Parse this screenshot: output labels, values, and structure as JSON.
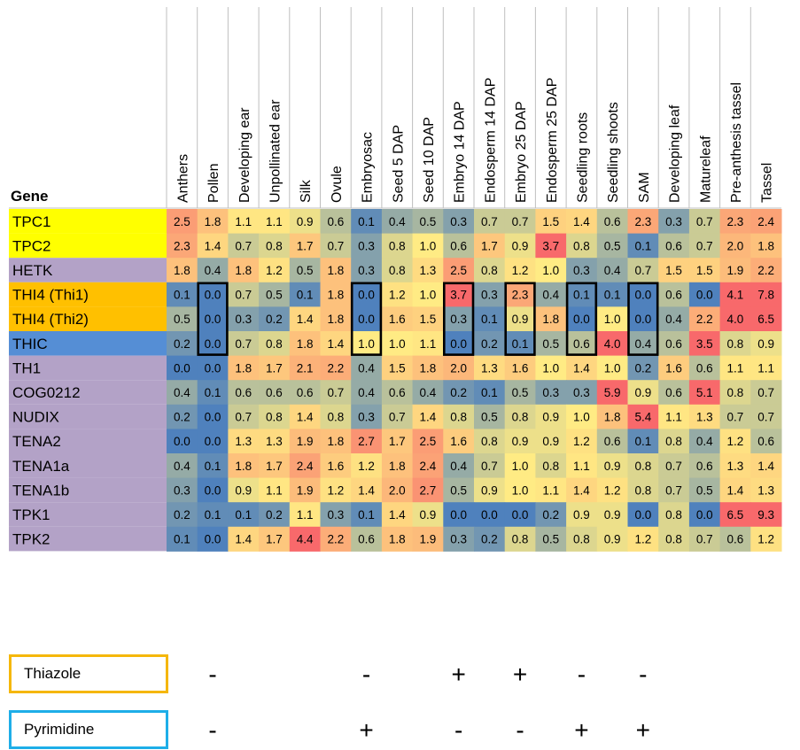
{
  "chart_data": {
    "type": "heatmap",
    "row_header": "Gene",
    "columns": [
      "Anthers",
      "Pollen",
      "Developing ear",
      "Unpollinated ear",
      "Silk",
      "Ovule",
      "Embryosac",
      "Seed 5 DAP",
      "Seed 10 DAP",
      "Embryo 14 DAP",
      "Endosperm 14 DAP",
      "Embryo 25 DAP",
      "Endosperm 25 DAP",
      "Seedling roots",
      "Seedling shoots",
      "SAM",
      "Developing leaf",
      "Matureleaf",
      "Pre-anthesis tassel",
      "Tassel"
    ],
    "rows": [
      {
        "gene": "TPC1",
        "group_color": "#ffff00",
        "values": [
          2.5,
          1.8,
          1.1,
          1.1,
          0.9,
          0.6,
          0.1,
          0.4,
          0.5,
          0.3,
          0.7,
          0.7,
          1.5,
          1.4,
          0.6,
          2.3,
          0.3,
          0.7,
          2.3,
          2.4
        ]
      },
      {
        "gene": "TPC2",
        "group_color": "#ffff00",
        "values": [
          2.3,
          1.4,
          0.7,
          0.8,
          1.7,
          0.7,
          0.3,
          0.8,
          1.0,
          0.6,
          1.7,
          0.9,
          3.7,
          0.8,
          0.5,
          0.1,
          0.6,
          0.7,
          2.0,
          1.8
        ]
      },
      {
        "gene": "HETK",
        "group_color": "#b3a2c7",
        "values": [
          1.8,
          0.4,
          1.8,
          1.2,
          0.5,
          1.8,
          0.3,
          0.8,
          1.3,
          2.5,
          0.8,
          1.2,
          1.0,
          0.3,
          0.4,
          0.7,
          1.5,
          1.5,
          1.9,
          2.2
        ]
      },
      {
        "gene": "THI4 (Thi1)",
        "group_color": "#ffc000",
        "values": [
          0.1,
          0.0,
          0.7,
          0.5,
          0.1,
          1.8,
          0.0,
          1.2,
          1.0,
          3.7,
          0.3,
          2.3,
          0.4,
          0.1,
          0.1,
          0.0,
          0.6,
          0.0,
          4.1,
          7.8
        ]
      },
      {
        "gene": "THI4 (Thi2)",
        "group_color": "#ffc000",
        "values": [
          0.5,
          0.0,
          0.3,
          0.2,
          1.4,
          1.8,
          0.0,
          1.6,
          1.5,
          0.3,
          0.1,
          0.9,
          1.8,
          0.0,
          1.0,
          0.0,
          0.4,
          2.2,
          4.0,
          6.5
        ]
      },
      {
        "gene": "THIC",
        "group_color": "#558ed5",
        "values": [
          0.2,
          0.0,
          0.7,
          0.8,
          1.8,
          1.4,
          1.0,
          1.0,
          1.1,
          0.0,
          0.2,
          0.1,
          0.5,
          0.6,
          4.0,
          0.4,
          0.6,
          3.5,
          0.8,
          0.9
        ]
      },
      {
        "gene": "TH1",
        "group_color": "#b3a2c7",
        "values": [
          0.0,
          0.0,
          1.8,
          1.7,
          2.1,
          2.2,
          0.4,
          1.5,
          1.8,
          2.0,
          1.3,
          1.6,
          1.0,
          1.4,
          1.0,
          0.2,
          1.6,
          0.6,
          1.1,
          1.1
        ]
      },
      {
        "gene": "COG0212",
        "group_color": "#b3a2c7",
        "values": [
          0.4,
          0.1,
          0.6,
          0.6,
          0.6,
          0.7,
          0.4,
          0.6,
          0.4,
          0.2,
          0.1,
          0.5,
          0.3,
          0.3,
          5.9,
          0.9,
          0.6,
          5.1,
          0.8,
          0.7
        ]
      },
      {
        "gene": "NUDIX",
        "group_color": "#b3a2c7",
        "values": [
          0.2,
          0.0,
          0.7,
          0.8,
          1.4,
          0.8,
          0.3,
          0.7,
          1.4,
          0.8,
          0.5,
          0.8,
          0.9,
          1.0,
          1.8,
          5.4,
          1.1,
          1.3,
          0.7,
          0.7
        ]
      },
      {
        "gene": "TENA2",
        "group_color": "#b3a2c7",
        "values": [
          0.0,
          0.0,
          1.3,
          1.3,
          1.9,
          1.8,
          2.7,
          1.7,
          2.5,
          1.6,
          0.8,
          0.9,
          0.9,
          1.2,
          0.6,
          0.1,
          0.8,
          0.4,
          1.2,
          0.6
        ]
      },
      {
        "gene": "TENA1a",
        "group_color": "#b3a2c7",
        "values": [
          0.4,
          0.1,
          1.8,
          1.7,
          2.4,
          1.6,
          1.2,
          1.8,
          2.4,
          0.4,
          0.7,
          1.0,
          0.8,
          1.1,
          0.9,
          0.8,
          0.7,
          0.6,
          1.3,
          1.4
        ]
      },
      {
        "gene": "TENA1b",
        "group_color": "#b3a2c7",
        "values": [
          0.3,
          0.0,
          0.9,
          1.1,
          1.9,
          1.2,
          1.4,
          2.0,
          2.7,
          0.5,
          0.9,
          1.0,
          1.1,
          1.4,
          1.2,
          0.8,
          0.7,
          0.5,
          1.4,
          1.3
        ]
      },
      {
        "gene": "TPK1",
        "group_color": "#b3a2c7",
        "values": [
          0.2,
          0.1,
          0.1,
          0.2,
          1.1,
          0.3,
          0.1,
          1.4,
          0.9,
          0.0,
          0.0,
          0.0,
          0.2,
          0.9,
          0.9,
          0.0,
          0.8,
          0.0,
          6.5,
          9.3
        ]
      },
      {
        "gene": "TPK2",
        "group_color": "#b3a2c7",
        "values": [
          0.1,
          0.0,
          1.4,
          1.7,
          4.4,
          2.2,
          0.6,
          1.8,
          1.9,
          0.3,
          0.2,
          0.8,
          0.5,
          0.8,
          0.9,
          1.2,
          0.8,
          0.7,
          0.6,
          1.2
        ]
      }
    ],
    "highlight_columns": [
      "Pollen",
      "Embryosac",
      "Embryo 14 DAP",
      "Embryo 25 DAP",
      "Seedling roots",
      "SAM"
    ],
    "highlight_rows": [
      "THI4 (Thi1)",
      "THI4 (Thi2)",
      "THIC"
    ],
    "color_scale": {
      "low": "#4f81bd",
      "mid": "#ffeb84",
      "high": "#f8696b"
    },
    "legend": [
      {
        "label": "Thiazole",
        "border_color": "#f5b70a",
        "signs": [
          {
            "column": "Pollen",
            "sign": "-"
          },
          {
            "column": "Embryosac",
            "sign": "-"
          },
          {
            "column": "Embryo 14 DAP",
            "sign": "+"
          },
          {
            "column": "Embryo 25 DAP",
            "sign": "+"
          },
          {
            "column": "Seedling roots",
            "sign": "-"
          },
          {
            "column": "SAM",
            "sign": "-"
          }
        ]
      },
      {
        "label": "Pyrimidine",
        "border_color": "#1eaee8",
        "signs": [
          {
            "column": "Pollen",
            "sign": "-"
          },
          {
            "column": "Embryosac",
            "sign": "+"
          },
          {
            "column": "Embryo 14 DAP",
            "sign": "-"
          },
          {
            "column": "Embryo 25 DAP",
            "sign": "-"
          },
          {
            "column": "Seedling roots",
            "sign": "+"
          },
          {
            "column": "SAM",
            "sign": "+"
          }
        ]
      }
    ]
  }
}
